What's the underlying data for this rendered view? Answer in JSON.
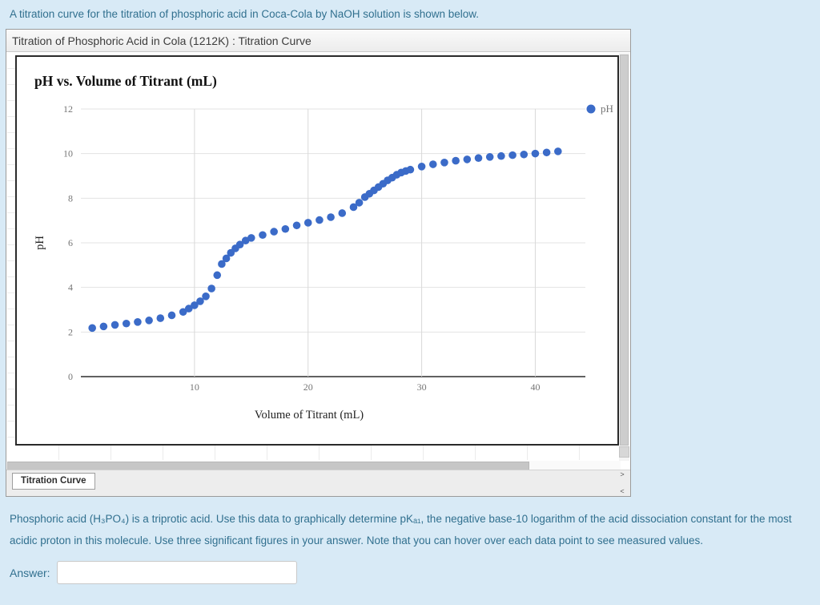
{
  "page": {
    "intro_text": "A titration curve for the titration of phosphoric acid in Coca-Cola by NaOH solution is shown below.",
    "question_text": "Phosphoric acid (H₃PO₄) is a triprotic acid. Use this data to graphically determine pKₐ₁, the negative base-10 logarithm of the acid dissociation constant for the most acidic proton in this molecule. Use three significant figures in your answer. Note that you can hover over each data point to see measured values.",
    "answer_label": "Answer:",
    "answer_value": "",
    "text_color": "#31708f",
    "background_color": "#d8eaf6"
  },
  "window": {
    "title": "Titration of Phosphoric Acid in Cola (1212K) : Titration Curve",
    "tab_label": "Titration Curve",
    "tab_scroll_right_icon": ">",
    "tab_scroll_left_icon": "<"
  },
  "chart_data": {
    "type": "scatter",
    "title": "pH vs. Volume of Titrant (mL)",
    "xlabel": "Volume of Titrant (mL)",
    "ylabel": "pH",
    "legend": [
      {
        "label": "pH",
        "color": "#3b6bc8",
        "position": "right"
      }
    ],
    "xlim": [
      0,
      43
    ],
    "ylim": [
      0,
      12
    ],
    "x_ticks": [
      10,
      20,
      30,
      40
    ],
    "y_ticks": [
      0,
      2,
      4,
      6,
      8,
      10,
      12
    ],
    "grid": true,
    "point_color": "#3b6bc8",
    "axis_text_color": "#757575",
    "grid_color": "#e3e3e3",
    "baseline_color": "#616161",
    "points": [
      [
        1,
        2.18
      ],
      [
        2,
        2.25
      ],
      [
        3,
        2.32
      ],
      [
        4,
        2.38
      ],
      [
        5,
        2.45
      ],
      [
        6,
        2.52
      ],
      [
        7,
        2.62
      ],
      [
        8,
        2.75
      ],
      [
        9,
        2.9
      ],
      [
        9.5,
        3.05
      ],
      [
        10,
        3.2
      ],
      [
        10.5,
        3.38
      ],
      [
        11,
        3.6
      ],
      [
        11.5,
        3.95
      ],
      [
        12,
        4.55
      ],
      [
        12.4,
        5.05
      ],
      [
        12.8,
        5.3
      ],
      [
        13.2,
        5.55
      ],
      [
        13.6,
        5.75
      ],
      [
        14,
        5.92
      ],
      [
        14.5,
        6.1
      ],
      [
        15,
        6.22
      ],
      [
        16,
        6.35
      ],
      [
        17,
        6.5
      ],
      [
        18,
        6.62
      ],
      [
        19,
        6.78
      ],
      [
        20,
        6.9
      ],
      [
        21,
        7.02
      ],
      [
        22,
        7.15
      ],
      [
        23,
        7.33
      ],
      [
        24,
        7.6
      ],
      [
        24.5,
        7.8
      ],
      [
        25,
        8.05
      ],
      [
        25.4,
        8.2
      ],
      [
        25.8,
        8.35
      ],
      [
        26.2,
        8.5
      ],
      [
        26.6,
        8.65
      ],
      [
        27,
        8.8
      ],
      [
        27.4,
        8.92
      ],
      [
        27.8,
        9.05
      ],
      [
        28.2,
        9.15
      ],
      [
        28.6,
        9.22
      ],
      [
        29,
        9.28
      ],
      [
        30,
        9.42
      ],
      [
        31,
        9.52
      ],
      [
        32,
        9.6
      ],
      [
        33,
        9.68
      ],
      [
        34,
        9.74
      ],
      [
        35,
        9.8
      ],
      [
        36,
        9.85
      ],
      [
        37,
        9.89
      ],
      [
        38,
        9.93
      ],
      [
        39,
        9.96
      ],
      [
        40,
        10.0
      ],
      [
        41,
        10.05
      ],
      [
        42,
        10.1
      ]
    ]
  }
}
